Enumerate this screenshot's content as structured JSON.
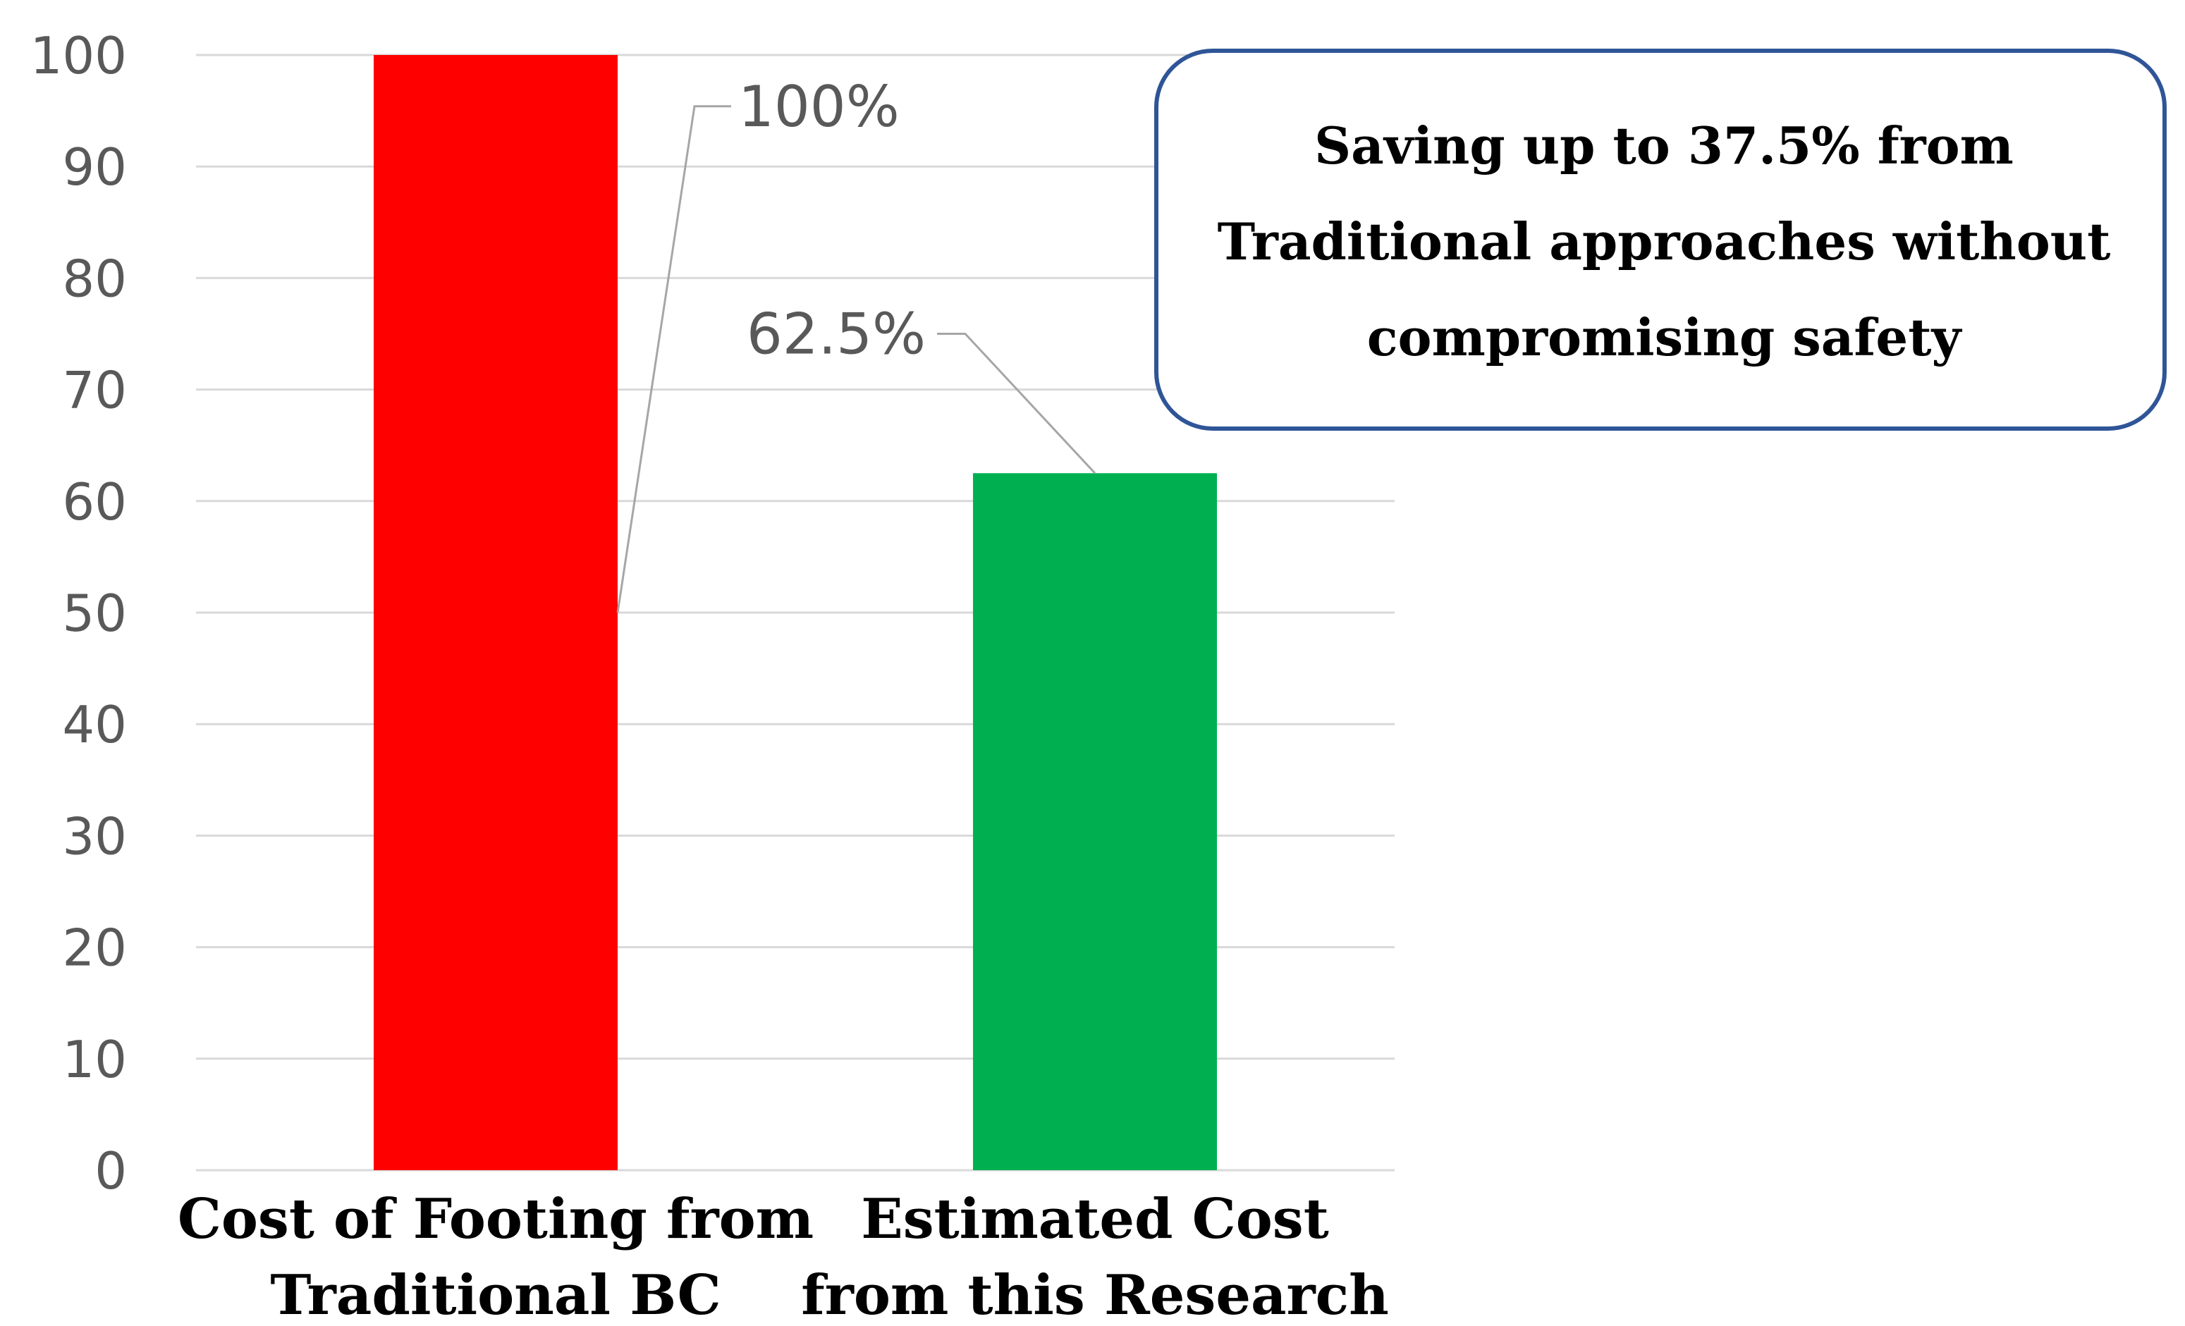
{
  "chart_data": {
    "type": "bar",
    "categories": [
      [
        "Cost of Footing from",
        "Traditional BC"
      ],
      [
        "Estimated Cost",
        "from this Research"
      ]
    ],
    "values": [
      100,
      62.5
    ],
    "data_labels": [
      "100%",
      "62.5%"
    ],
    "bar_colors": [
      "#ff0000",
      "#00b050"
    ],
    "ylim": [
      0,
      100
    ],
    "yticks": [
      0,
      10,
      20,
      30,
      40,
      50,
      60,
      70,
      80,
      90,
      100
    ],
    "grid": true,
    "title": "",
    "xlabel": "",
    "ylabel": ""
  },
  "annotation": {
    "lines": [
      "Saving up to 37.5% from",
      "Traditional approaches without",
      "compromising safety"
    ],
    "border_color": "#2f5597"
  }
}
